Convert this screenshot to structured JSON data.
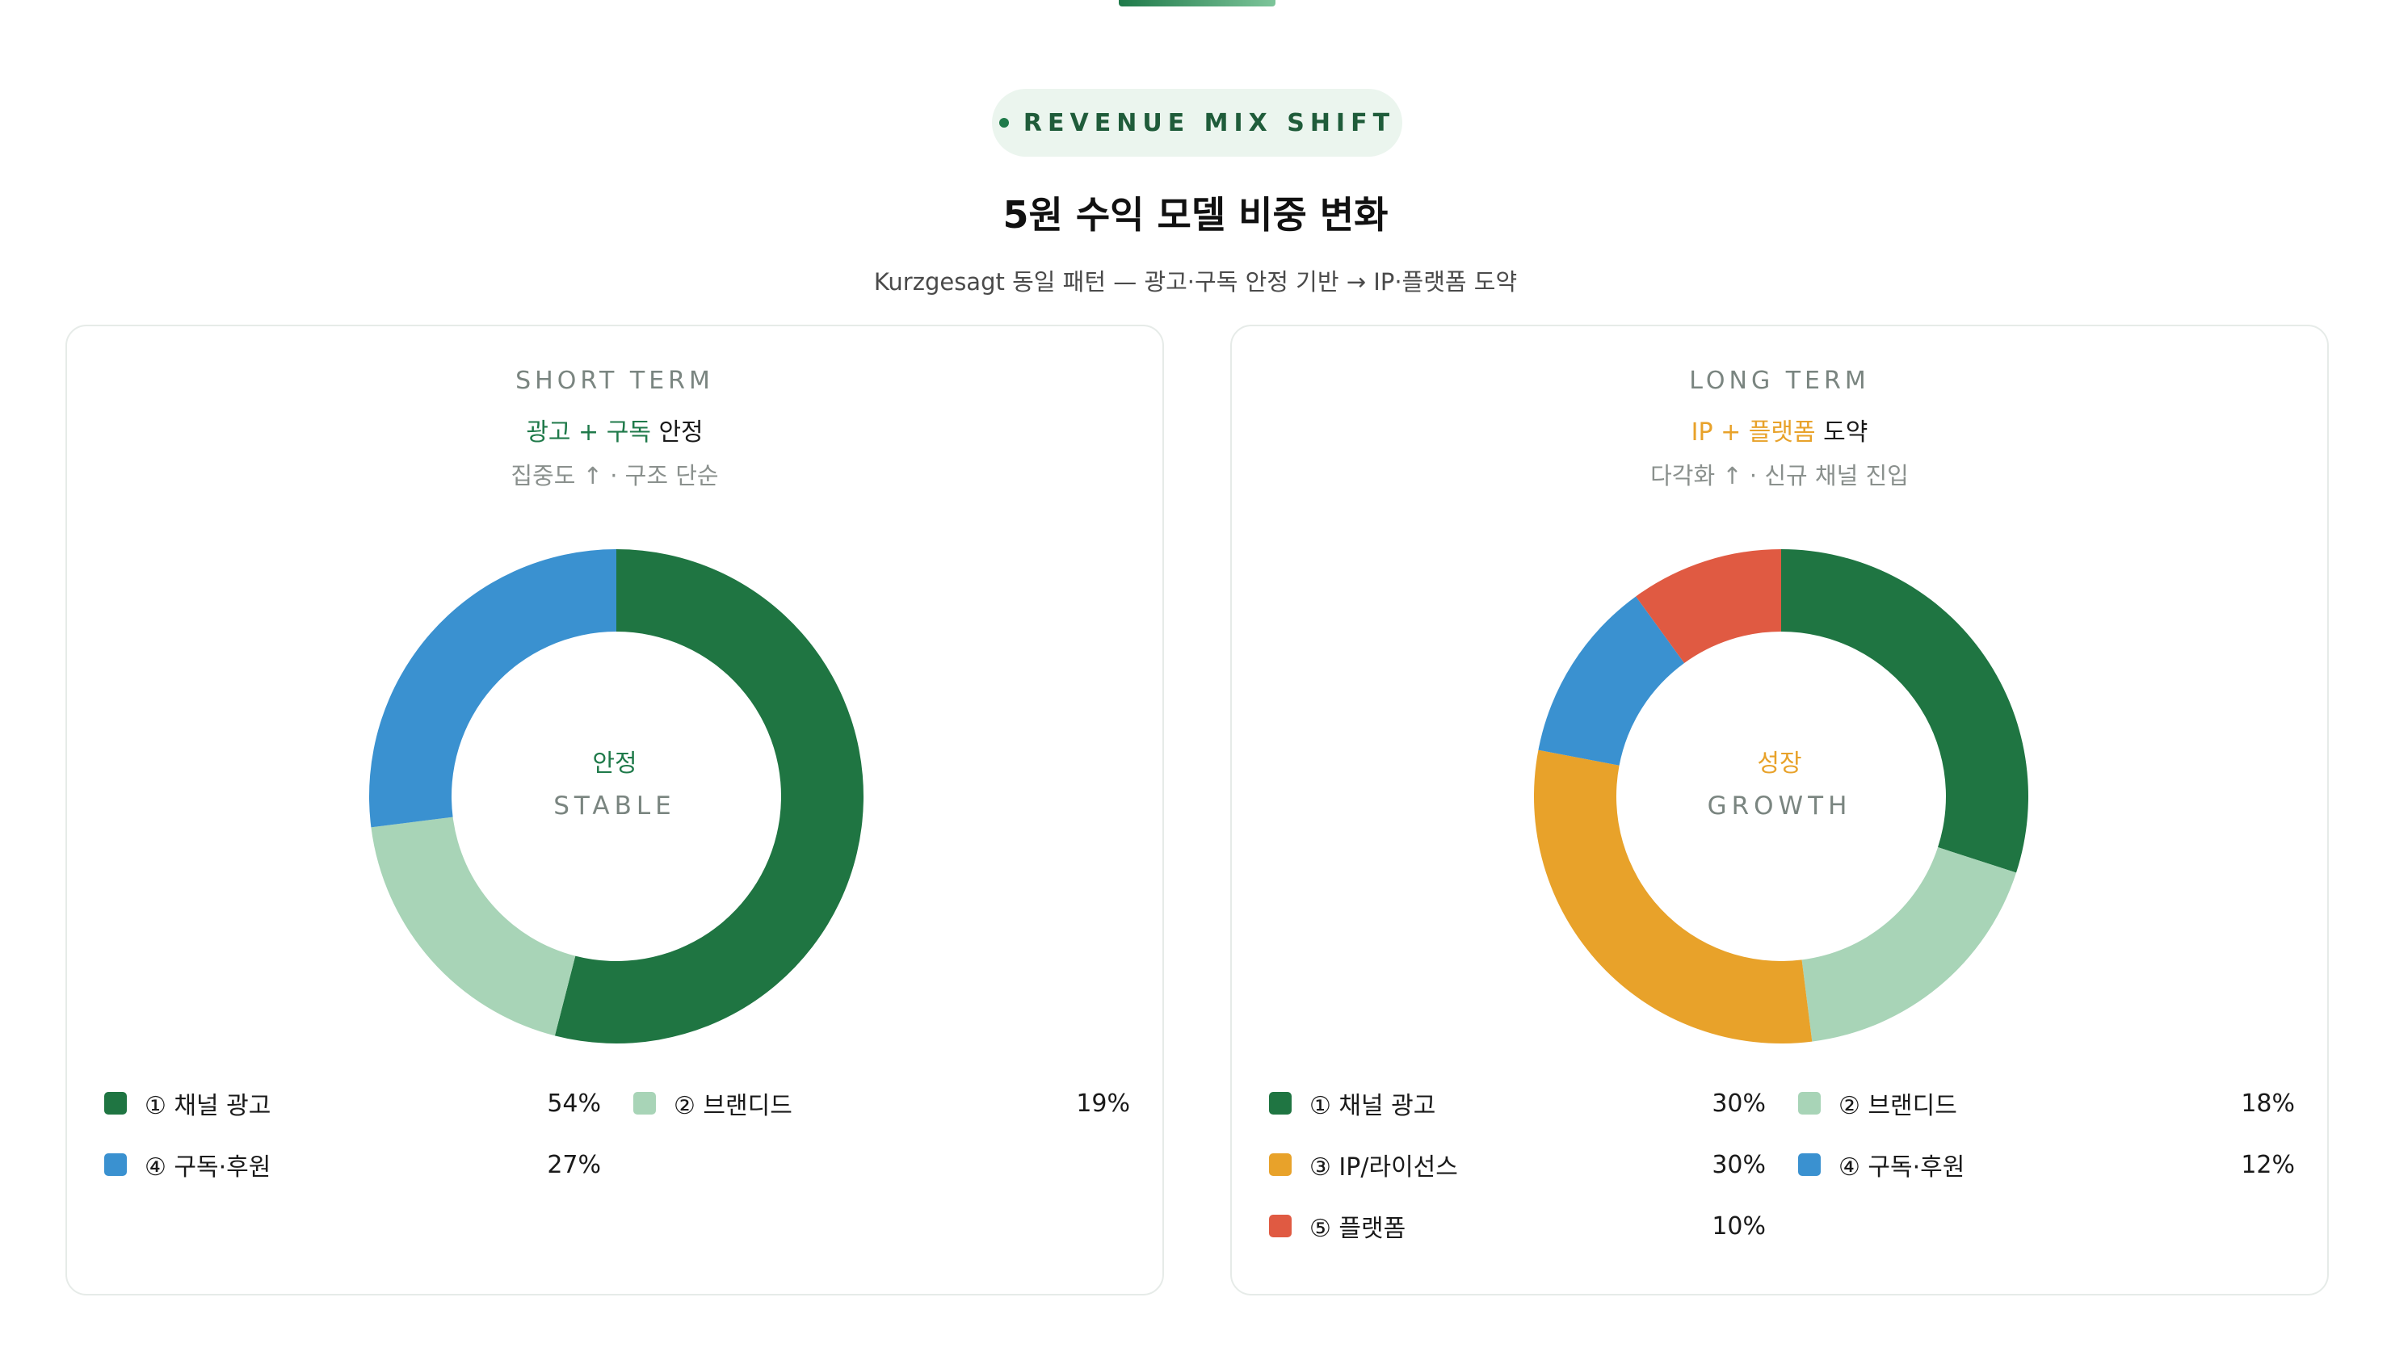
{
  "header": {
    "badge": "REVENUE MIX SHIFT",
    "title": "5원 수익 모델 비중 변화",
    "subtitle": "Kurzgesagt 동일 패턴 — 광고·구독 안정 기반 → IP·플랫폼 도약"
  },
  "colors": {
    "accent": "#1f7a4a",
    "orange": "#e8a22a",
    "ad": "#1f7542",
    "branded": "#a8d4b7",
    "ip": "#e8a22a",
    "subscription": "#3a91d0",
    "platform": "#e05a42"
  },
  "cards": [
    {
      "term": "SHORT TERM",
      "headline_accent": "광고 + 구독",
      "headline_rest": " 안정",
      "note": "집중도 ↑ · 구조 단순",
      "center_word": "안정",
      "center_en": "STABLE",
      "center_color": "#1f7a4a"
    },
    {
      "term": "LONG TERM",
      "headline_accent": "IP + 플랫폼",
      "headline_rest": " 도약",
      "note": "다각화 ↑ · 신규 채널 진입",
      "center_word": "성장",
      "center_en": "GROWTH",
      "center_color": "#e8a22a"
    }
  ],
  "chart_data": [
    {
      "type": "pie",
      "donut": true,
      "categories": [
        "① 채널 광고",
        "② 브랜디드",
        "④ 구독·후원"
      ],
      "values": [
        54,
        19,
        27
      ],
      "display": [
        "54%",
        "19%",
        "27%"
      ],
      "colors": [
        "#1f7542",
        "#a8d4b7",
        "#3a91d0"
      ]
    },
    {
      "type": "pie",
      "donut": true,
      "categories": [
        "① 채널 광고",
        "② 브랜디드",
        "③ IP/라이선스",
        "④ 구독·후원",
        "⑤ 플랫폼"
      ],
      "values": [
        30,
        18,
        30,
        12,
        10
      ],
      "display": [
        "30%",
        "18%",
        "30%",
        "12%",
        "10%"
      ],
      "colors": [
        "#1f7542",
        "#a8d4b7",
        "#e8a22a",
        "#3a91d0",
        "#e05a42"
      ]
    }
  ]
}
